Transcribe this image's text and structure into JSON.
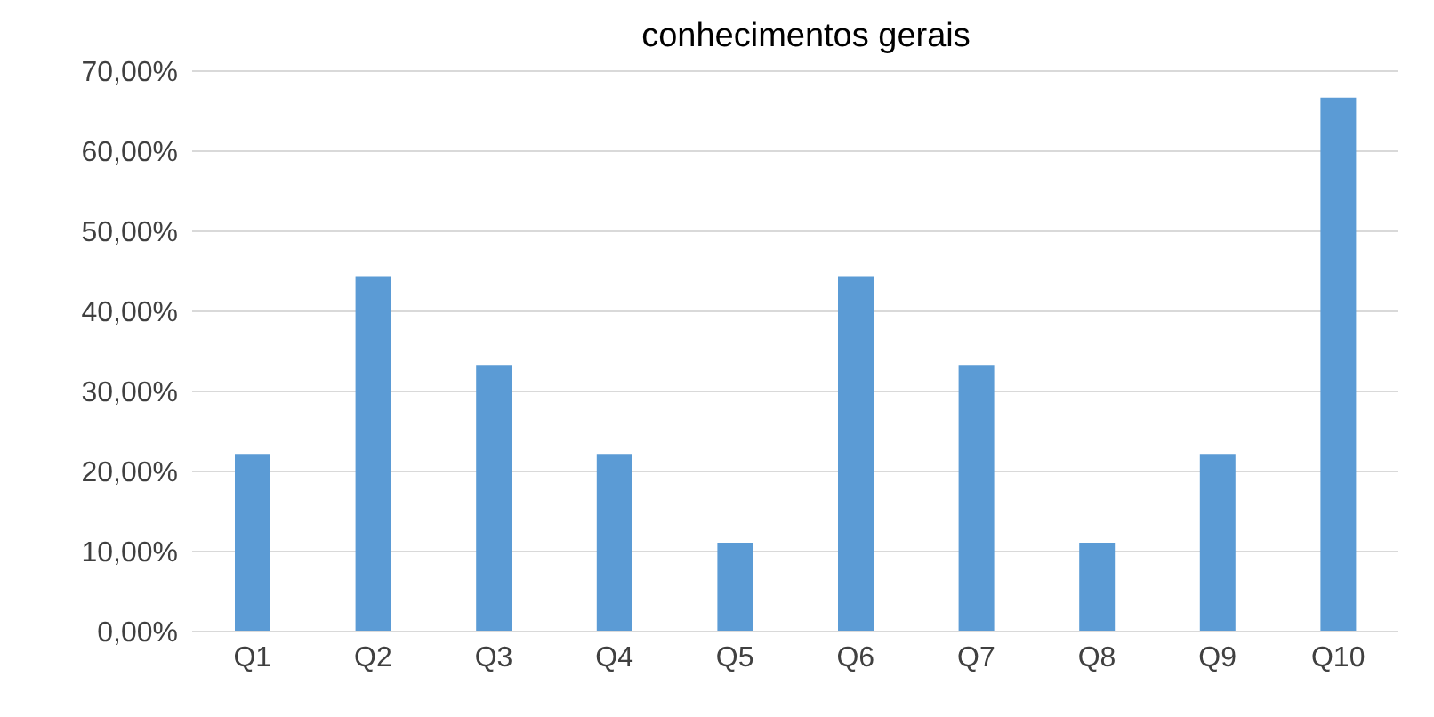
{
  "chart_data": {
    "type": "bar",
    "title": "conhecimentos gerais",
    "categories": [
      "Q1",
      "Q2",
      "Q3",
      "Q4",
      "Q5",
      "Q6",
      "Q7",
      "Q8",
      "Q9",
      "Q10"
    ],
    "values": [
      22.2,
      44.4,
      33.3,
      22.2,
      11.1,
      44.4,
      33.3,
      11.1,
      22.2,
      66.7
    ],
    "color": "#5b9bd5",
    "ylim": [
      0,
      70
    ],
    "yticks": [
      {
        "value": 0,
        "label": "0,00%"
      },
      {
        "value": 10,
        "label": "10,00%"
      },
      {
        "value": 20,
        "label": "20,00%"
      },
      {
        "value": 30,
        "label": "30,00%"
      },
      {
        "value": 40,
        "label": "40,00%"
      },
      {
        "value": 50,
        "label": "50,00%"
      },
      {
        "value": 60,
        "label": "60,00%"
      },
      {
        "value": 70,
        "label": "70,00%"
      }
    ],
    "grid": "y"
  }
}
